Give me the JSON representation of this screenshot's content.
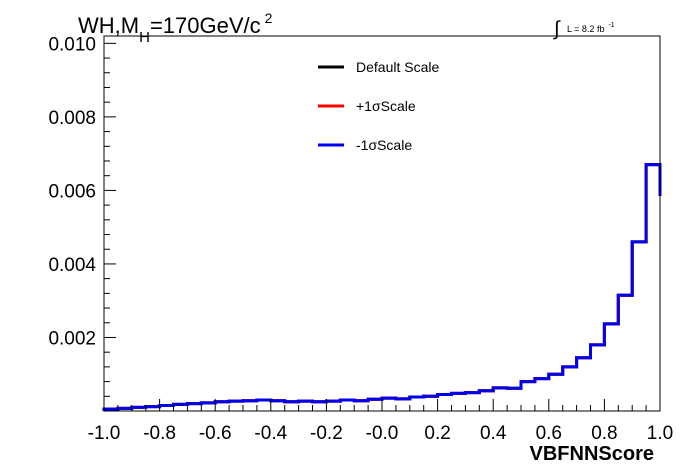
{
  "chart_data": {
    "type": "line",
    "title": {
      "main": "WH,M",
      "sub": "H",
      "rest": "=170GeV/c",
      "sup": "2"
    },
    "lumi": {
      "symbol": "∫",
      "text": "L = 8.2 fb",
      "sup": "-1"
    },
    "xlabel": "VBFNNScore",
    "ylabel": "",
    "xlim": [
      -1.0,
      1.0
    ],
    "ylim": [
      0,
      0.0102
    ],
    "xticks": [
      -1.0,
      -0.8,
      -0.6,
      -0.4,
      -0.2,
      0.0,
      0.2,
      0.4,
      0.6,
      0.8,
      1.0
    ],
    "xtick_labels": [
      "-1.0",
      "-0.8",
      "-0.6",
      "-0.4",
      "-0.2",
      "-0.0",
      "0.2",
      "0.4",
      "0.6",
      "0.8",
      "1.0"
    ],
    "yticks": [
      0.002,
      0.004,
      0.006,
      0.008,
      0.01
    ],
    "ytick_labels": [
      "0.002",
      "0.004",
      "0.006",
      "0.008",
      "0.010"
    ],
    "bin_edges": [
      -1.0,
      -0.95,
      -0.9,
      -0.85,
      -0.8,
      -0.75,
      -0.7,
      -0.65,
      -0.6,
      -0.55,
      -0.5,
      -0.45,
      -0.4,
      -0.35,
      -0.3,
      -0.25,
      -0.2,
      -0.15,
      -0.1,
      -0.05,
      0.0,
      0.05,
      0.1,
      0.15,
      0.2,
      0.25,
      0.3,
      0.35,
      0.4,
      0.45,
      0.5,
      0.55,
      0.6,
      0.65,
      0.7,
      0.75,
      0.8,
      0.85,
      0.9,
      0.95,
      1.0
    ],
    "legend_position": "top-center",
    "series": [
      {
        "name": "Default Scale",
        "color": "#000000",
        "values": [
          5e-05,
          7e-05,
          0.0001,
          0.00012,
          0.00015,
          0.00018,
          0.0002,
          0.00022,
          0.00025,
          0.00027,
          0.00028,
          0.0003,
          0.00028,
          0.00025,
          0.00027,
          0.00025,
          0.00027,
          0.0003,
          0.00028,
          0.00032,
          0.00035,
          0.00033,
          0.00038,
          0.0004,
          0.00045,
          0.00048,
          0.0005,
          0.00055,
          0.00063,
          0.00062,
          0.0008,
          0.00088,
          0.001,
          0.0012,
          0.00145,
          0.0018,
          0.00237,
          0.00315,
          0.0046,
          0.0067,
          0.00585
        ]
      },
      {
        "name": "+1σScale",
        "color": "#ff0000",
        "values": [
          5e-05,
          7e-05,
          0.0001,
          0.00012,
          0.00015,
          0.00018,
          0.0002,
          0.00022,
          0.00025,
          0.00027,
          0.00028,
          0.0003,
          0.00028,
          0.00025,
          0.00027,
          0.00025,
          0.00027,
          0.0003,
          0.00028,
          0.00032,
          0.00035,
          0.00033,
          0.00038,
          0.0004,
          0.00045,
          0.00048,
          0.0005,
          0.00055,
          0.00063,
          0.00062,
          0.0008,
          0.00088,
          0.001,
          0.0012,
          0.00145,
          0.0018,
          0.00237,
          0.00315,
          0.0046,
          0.0067,
          0.00585
        ]
      },
      {
        "name": "-1σScale",
        "color": "#0000ee",
        "values": [
          5e-05,
          7e-05,
          0.0001,
          0.00012,
          0.00015,
          0.00018,
          0.0002,
          0.00022,
          0.00025,
          0.00027,
          0.00028,
          0.0003,
          0.00028,
          0.00025,
          0.00027,
          0.00025,
          0.00027,
          0.0003,
          0.00028,
          0.00032,
          0.00035,
          0.00033,
          0.00038,
          0.0004,
          0.00045,
          0.00048,
          0.0005,
          0.00055,
          0.00063,
          0.00062,
          0.0008,
          0.00088,
          0.001,
          0.0012,
          0.00145,
          0.0018,
          0.00237,
          0.00315,
          0.0046,
          0.0067,
          0.00585
        ]
      }
    ]
  }
}
